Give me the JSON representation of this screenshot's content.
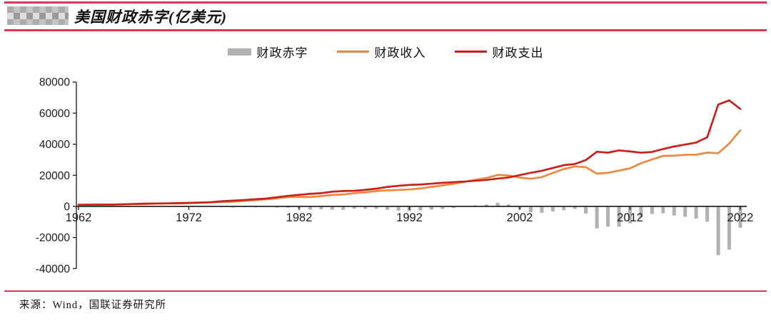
{
  "header": {
    "title": "美国财政赤字(亿美元)"
  },
  "legend": {
    "items": [
      {
        "label": "财政赤字",
        "type": "bar",
        "color": "#b1b1b1"
      },
      {
        "label": "财政收入",
        "type": "line",
        "color": "#f0873f"
      },
      {
        "label": "财政支出",
        "type": "line",
        "color": "#c9201a"
      }
    ]
  },
  "footer": {
    "source": "来源：Wind，国联证券研究所"
  },
  "colors": {
    "rule_red": "#d93a56",
    "axis": "#262626",
    "tick_text": "#1a1a1a",
    "deficit_bar": "#b1b1b1",
    "revenue_line": "#f0873f",
    "expenditure_line": "#c9201a"
  },
  "chart_data": {
    "type": "bar",
    "title": "美国财政赤字(亿美元)",
    "xlabel": "",
    "ylabel": "",
    "unit": "亿美元",
    "ylim": [
      -40000,
      80000
    ],
    "yticks": [
      80000,
      60000,
      40000,
      20000,
      0,
      -20000,
      -40000
    ],
    "xticks": [
      1962,
      1972,
      1982,
      1992,
      2002,
      2012,
      2022
    ],
    "grid": false,
    "legend_position": "top-center",
    "x": [
      1962,
      1963,
      1964,
      1965,
      1966,
      1967,
      1968,
      1969,
      1970,
      1971,
      1972,
      1973,
      1974,
      1975,
      1976,
      1977,
      1978,
      1979,
      1980,
      1981,
      1982,
      1983,
      1984,
      1985,
      1986,
      1987,
      1988,
      1989,
      1990,
      1991,
      1992,
      1993,
      1994,
      1995,
      1996,
      1997,
      1998,
      1999,
      2000,
      2001,
      2002,
      2003,
      2004,
      2005,
      2006,
      2007,
      2008,
      2009,
      2010,
      2011,
      2012,
      2013,
      2014,
      2015,
      2016,
      2017,
      2018,
      2019,
      2020,
      2021,
      2022
    ],
    "series": [
      {
        "name": "财政赤字",
        "type": "bar",
        "color": "#b1b1b1",
        "values": [
          -71,
          -47,
          -59,
          -14,
          -37,
          -87,
          -251,
          33,
          -28,
          -231,
          -234,
          -149,
          -62,
          -532,
          -737,
          -536,
          -591,
          -407,
          -738,
          -789,
          -1279,
          -2078,
          -1854,
          -2123,
          -2212,
          -1497,
          -1552,
          -1526,
          -2210,
          -2692,
          -2903,
          -2551,
          -2032,
          -1639,
          -1074,
          -219,
          692,
          1257,
          2362,
          1283,
          -1578,
          -3776,
          -4127,
          -3184,
          -2482,
          -1607,
          -4585,
          -14127,
          -12944,
          -12996,
          -10870,
          -6795,
          -4846,
          -4420,
          -5846,
          -6654,
          -7791,
          -9836,
          -31324,
          -27753,
          -13745
        ]
      },
      {
        "name": "财政收入",
        "type": "line",
        "color": "#f0873f",
        "values": [
          997,
          1066,
          1126,
          1168,
          1308,
          1488,
          1530,
          1869,
          1928,
          1871,
          2073,
          2308,
          2632,
          2791,
          2981,
          3556,
          3996,
          4633,
          5171,
          5993,
          6178,
          6006,
          6664,
          7340,
          7692,
          8543,
          9092,
          9911,
          10320,
          10550,
          10912,
          11543,
          12586,
          13518,
          14531,
          15792,
          17217,
          18275,
          20252,
          19911,
          18531,
          17823,
          18801,
          21536,
          24069,
          25680,
          25240,
          21050,
          21627,
          23035,
          24500,
          27751,
          30215,
          32499,
          32680,
          33162,
          33299,
          34634,
          34212,
          40471,
          48970
        ]
      },
      {
        "name": "财政支出",
        "type": "line",
        "color": "#c9201a",
        "values": [
          1068,
          1113,
          1185,
          1182,
          1345,
          1575,
          1781,
          1836,
          1956,
          2102,
          2307,
          2457,
          2694,
          3323,
          3718,
          4092,
          4587,
          5040,
          5909,
          6782,
          7457,
          8084,
          8518,
          9463,
          9904,
          10040,
          10644,
          11437,
          12530,
          13242,
          13815,
          14094,
          14618,
          15157,
          15605,
          16011,
          16525,
          17018,
          17890,
          18628,
          20109,
          21599,
          22928,
          24720,
          26551,
          27287,
          29825,
          35177,
          34571,
          36031,
          35370,
          34546,
          35061,
          36919,
          38526,
          39816,
          41090,
          44470,
          65536,
          68224,
          62715
        ]
      }
    ]
  }
}
